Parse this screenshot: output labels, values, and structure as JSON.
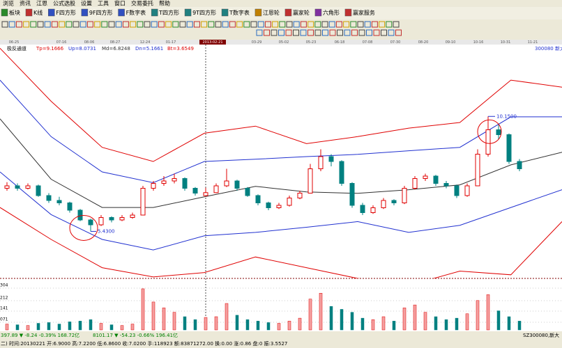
{
  "menu": [
    "浏览",
    "资讯",
    "江恩",
    "公式选股",
    "设置",
    "工具",
    "窗口",
    "交易委托",
    "帮助"
  ],
  "toolbar": [
    "板块",
    "K线",
    "F四方形",
    "9F四方形",
    "F数字表",
    "T四方形",
    "9T四方形",
    "T数字表",
    "江恩轮",
    "赢家轮",
    "六角形",
    "赢家服务"
  ],
  "date_axis": [
    "06-25",
    "07-16",
    "08-06",
    "08-27",
    "12-24",
    "01-17",
    "2013-02-21",
    "03-29",
    "05-02",
    "05-23",
    "06-18",
    "07-08",
    "07-30",
    "08-20",
    "09-10",
    "10-16",
    "10-31",
    "11-21"
  ],
  "indicator": {
    "name": "极反通道",
    "params": [
      "Tp=9.1666",
      "Up=8.0731",
      "Md=6.8248",
      "Dn=5.1661",
      "Bt=3.6549"
    ],
    "stock": "300080 新大"
  },
  "chart": {
    "ylim": [
      3.5,
      13.1
    ],
    "lines": [
      {
        "color": "#e00000",
        "values": [
          12.95,
          10.77,
          8.88,
          8.3,
          9.46,
          9.75,
          9.03,
          9.32,
          9.67,
          9.9,
          11.64,
          11.35
        ]
      },
      {
        "color": "#2030d0",
        "values": [
          11.64,
          9.32,
          7.87,
          7.43,
          8.3,
          8.39,
          8.5,
          8.59,
          8.74,
          8.88,
          10.13,
          10.13
        ]
      },
      {
        "color": "#303030",
        "values": [
          10.05,
          7.57,
          6.41,
          6.41,
          6.85,
          7.28,
          7.05,
          6.99,
          7.14,
          7.34,
          8.16,
          8.68
        ]
      },
      {
        "color": "#2030d0",
        "values": [
          7.87,
          6.12,
          5.1,
          4.67,
          5.25,
          5.39,
          5.6,
          5.83,
          5.39,
          5.68,
          6.41,
          7.14
        ]
      },
      {
        "color": "#e00000",
        "values": [
          6.41,
          5.1,
          3.94,
          3.56,
          3.74,
          4.38,
          3.94,
          3.5,
          3.21,
          3.8,
          3.65,
          5.83
        ]
      }
    ],
    "candles": [
      [
        7.2,
        7.45,
        7.1,
        7.3
      ],
      [
        7.3,
        7.4,
        7.1,
        7.2
      ],
      [
        7.2,
        7.4,
        7.15,
        7.3
      ],
      [
        7.3,
        7.35,
        6.85,
        6.9
      ],
      [
        6.9,
        7.0,
        6.6,
        6.7
      ],
      [
        6.7,
        6.85,
        6.5,
        6.6
      ],
      [
        6.6,
        6.65,
        6.2,
        6.3
      ],
      [
        6.3,
        6.35,
        5.85,
        5.9
      ],
      [
        5.9,
        5.95,
        5.43,
        5.7
      ],
      [
        5.7,
        6.1,
        5.65,
        6.0
      ],
      [
        6.0,
        6.05,
        5.8,
        5.9
      ],
      [
        5.9,
        6.1,
        5.85,
        6.0
      ],
      [
        6.0,
        6.2,
        5.95,
        6.1
      ],
      [
        6.1,
        7.3,
        6.1,
        7.2
      ],
      [
        7.2,
        7.5,
        7.1,
        7.4
      ],
      [
        7.4,
        7.7,
        7.3,
        7.5
      ],
      [
        7.5,
        7.8,
        7.4,
        7.6
      ],
      [
        7.6,
        7.65,
        7.1,
        7.2
      ],
      [
        7.2,
        7.25,
        6.9,
        7.0
      ],
      [
        6.9,
        7.22,
        6.86,
        7.02
      ],
      [
        7.02,
        7.4,
        7.0,
        7.3
      ],
      [
        7.3,
        8.0,
        7.25,
        7.5
      ],
      [
        7.5,
        7.55,
        7.1,
        7.2
      ],
      [
        7.2,
        7.25,
        6.85,
        6.9
      ],
      [
        6.9,
        6.95,
        6.5,
        6.6
      ],
      [
        6.6,
        6.65,
        6.3,
        6.4
      ],
      [
        6.4,
        6.6,
        6.35,
        6.5
      ],
      [
        6.5,
        6.9,
        6.45,
        6.8
      ],
      [
        6.8,
        7.1,
        6.75,
        7.0
      ],
      [
        7.0,
        8.2,
        7.0,
        8.0
      ],
      [
        8.0,
        8.8,
        7.9,
        8.5
      ],
      [
        8.5,
        8.6,
        8.1,
        8.3
      ],
      [
        8.3,
        8.35,
        7.3,
        7.4
      ],
      [
        7.4,
        7.45,
        6.4,
        6.5
      ],
      [
        6.5,
        6.6,
        6.1,
        6.2
      ],
      [
        6.2,
        6.5,
        6.15,
        6.4
      ],
      [
        6.4,
        6.8,
        6.35,
        6.7
      ],
      [
        6.7,
        6.75,
        6.5,
        6.6
      ],
      [
        6.6,
        7.3,
        6.55,
        7.2
      ],
      [
        7.2,
        7.7,
        7.15,
        7.6
      ],
      [
        7.6,
        7.8,
        7.5,
        7.7
      ],
      [
        7.7,
        7.75,
        7.3,
        7.4
      ],
      [
        7.4,
        7.5,
        7.2,
        7.3
      ],
      [
        7.3,
        7.35,
        6.8,
        6.9
      ],
      [
        6.9,
        7.4,
        6.85,
        7.3
      ],
      [
        7.3,
        8.8,
        7.3,
        8.6
      ],
      [
        8.6,
        10.15,
        8.5,
        9.6
      ],
      [
        9.6,
        9.8,
        9.2,
        9.4
      ],
      [
        9.4,
        9.45,
        8.2,
        8.3
      ],
      [
        8.3,
        8.4,
        7.9,
        8.0
      ]
    ],
    "annotations": [
      "10.1500",
      "5.4300"
    ],
    "volume_axis": [
      "304",
      "212",
      "141",
      "071"
    ],
    "volumes": [
      40,
      35,
      30,
      45,
      50,
      40,
      55,
      60,
      70,
      45,
      35,
      30,
      40,
      280,
      190,
      150,
      120,
      90,
      70,
      85,
      90,
      180,
      100,
      70,
      60,
      50,
      45,
      60,
      80,
      210,
      250,
      160,
      140,
      120,
      80,
      70,
      90,
      60,
      150,
      170,
      120,
      90,
      70,
      80,
      110,
      200,
      240,
      130,
      90,
      60
    ]
  },
  "index_bar": [
    "397.89 ▼ -8.24 -0.39% 168.72亿",
    "8101.17 ▼ -54.23 -0.66% 196.41亿",
    "SZ300080,新大"
  ],
  "status": "二) 时间:20130221 开:6.9000 高:7.2200 低:6.8600 收:7.0200 手:118923 额:83871272.00 换:0.00 涨:0.86 盘:0 振:3.5527"
}
